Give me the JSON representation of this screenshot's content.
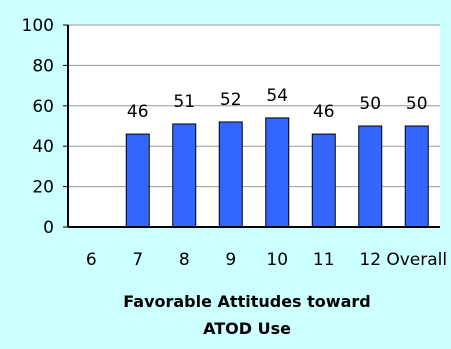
{
  "chart_data": {
    "type": "bar",
    "categories": [
      "6",
      "7",
      "8",
      "9",
      "10",
      "11",
      "12",
      "Overall"
    ],
    "values": [
      null,
      46,
      51,
      52,
      54,
      46,
      50,
      50
    ],
    "data_labels": [
      "",
      "46",
      "51",
      "52",
      "54",
      "46",
      "50",
      "50"
    ],
    "xlabel": "Favorable Attitudes toward ATOD Use",
    "xlabel_lines": [
      "Favorable Attitudes toward",
      "ATOD Use"
    ],
    "ylabel": "",
    "ylim": [
      0,
      100
    ],
    "yticks": [
      0,
      20,
      40,
      60,
      80,
      100
    ],
    "grid": true,
    "legend": "none",
    "colors": {
      "background": "#ccffff",
      "plot_area": "#ffffff",
      "bar_fill": "#3366ff",
      "bar_stroke": "#000000",
      "grid": "#999999"
    }
  }
}
